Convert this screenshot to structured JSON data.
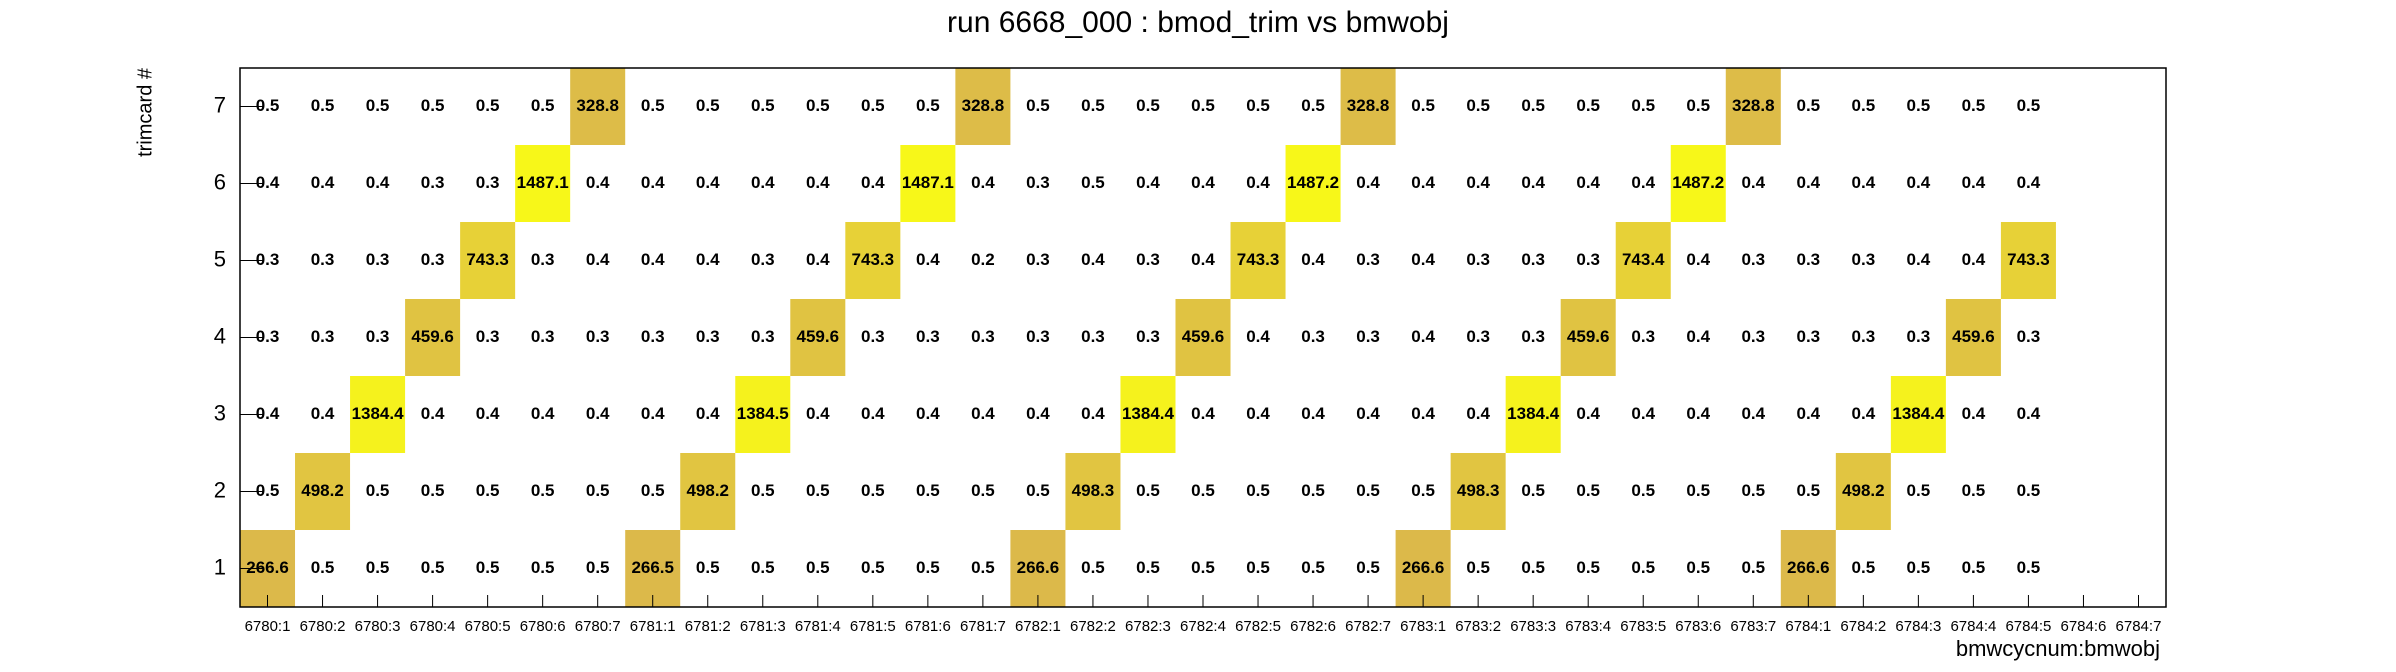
{
  "chart_data": {
    "type": "heatmap",
    "title": "run 6668_000 : bmod_trim vs bmwobj",
    "x_label": "bmwcycnum:bmwobj",
    "y_label": "trimcard #",
    "x_categories": [
      "6780:1",
      "6780:2",
      "6780:3",
      "6780:4",
      "6780:5",
      "6780:6",
      "6780:7",
      "6781:1",
      "6781:2",
      "6781:3",
      "6781:4",
      "6781:5",
      "6781:6",
      "6781:7",
      "6782:1",
      "6782:2",
      "6782:3",
      "6782:4",
      "6782:5",
      "6782:6",
      "6782:7",
      "6783:1",
      "6783:2",
      "6783:3",
      "6783:4",
      "6783:5",
      "6783:6",
      "6783:7",
      "6784:1",
      "6784:2",
      "6784:3",
      "6784:4",
      "6784:5",
      "6784:6",
      "6784:7"
    ],
    "y_categories": [
      1,
      2,
      3,
      4,
      5,
      6,
      7
    ],
    "palette": [
      "#dcb94a",
      "#f7f719"
    ],
    "values": [
      [
        266.6,
        0.5,
        0.5,
        0.5,
        0.5,
        0.5,
        0.5,
        266.5,
        0.5,
        0.5,
        0.5,
        0.5,
        0.5,
        0.5,
        266.6,
        0.5,
        0.5,
        0.5,
        0.5,
        0.5,
        0.5,
        266.6,
        0.5,
        0.5,
        0.5,
        0.5,
        0.5,
        0.5,
        266.6,
        0.5,
        0.5,
        0.5,
        0.5,
        null,
        null
      ],
      [
        0.5,
        498.2,
        0.5,
        0.5,
        0.5,
        0.5,
        0.5,
        0.5,
        498.2,
        0.5,
        0.5,
        0.5,
        0.5,
        0.5,
        0.5,
        498.3,
        0.5,
        0.5,
        0.5,
        0.5,
        0.5,
        0.5,
        498.3,
        0.5,
        0.5,
        0.5,
        0.5,
        0.5,
        0.5,
        498.2,
        0.5,
        0.5,
        0.5,
        null,
        null
      ],
      [
        0.4,
        0.4,
        1384.4,
        0.4,
        0.4,
        0.4,
        0.4,
        0.4,
        0.4,
        1384.5,
        0.4,
        0.4,
        0.4,
        0.4,
        0.4,
        0.4,
        1384.4,
        0.4,
        0.4,
        0.4,
        0.4,
        0.4,
        0.4,
        1384.4,
        0.4,
        0.4,
        0.4,
        0.4,
        0.4,
        0.4,
        1384.4,
        0.4,
        0.4,
        null,
        null
      ],
      [
        0.3,
        0.3,
        0.3,
        459.6,
        0.3,
        0.3,
        0.3,
        0.3,
        0.3,
        0.3,
        459.6,
        0.3,
        0.3,
        0.3,
        0.3,
        0.3,
        0.3,
        459.6,
        0.4,
        0.3,
        0.3,
        0.4,
        0.3,
        0.3,
        459.6,
        0.3,
        0.4,
        0.3,
        0.3,
        0.3,
        0.3,
        459.6,
        0.3,
        null,
        null
      ],
      [
        0.3,
        0.3,
        0.3,
        0.3,
        743.3,
        0.3,
        0.4,
        0.4,
        0.4,
        0.3,
        0.4,
        743.3,
        0.4,
        0.2,
        0.3,
        0.4,
        0.3,
        0.4,
        743.3,
        0.4,
        0.3,
        0.4,
        0.3,
        0.3,
        0.3,
        743.4,
        0.4,
        0.3,
        0.3,
        0.3,
        0.4,
        0.4,
        743.3,
        null,
        null
      ],
      [
        0.4,
        0.4,
        0.4,
        0.3,
        0.3,
        1487.1,
        0.4,
        0.4,
        0.4,
        0.4,
        0.4,
        0.4,
        1487.1,
        0.4,
        0.3,
        0.5,
        0.4,
        0.4,
        0.4,
        1487.2,
        0.4,
        0.4,
        0.4,
        0.4,
        0.4,
        0.4,
        1487.2,
        0.4,
        0.4,
        0.4,
        0.4,
        0.4,
        0.4,
        null,
        null
      ],
      [
        0.5,
        0.5,
        0.5,
        0.5,
        0.5,
        0.5,
        328.8,
        0.5,
        0.5,
        0.5,
        0.5,
        0.5,
        0.5,
        328.8,
        0.5,
        0.5,
        0.5,
        0.5,
        0.5,
        0.5,
        328.8,
        0.5,
        0.5,
        0.5,
        0.5,
        0.5,
        0.5,
        328.8,
        0.5,
        0.5,
        0.5,
        0.5,
        0.5,
        null,
        null
      ]
    ]
  }
}
